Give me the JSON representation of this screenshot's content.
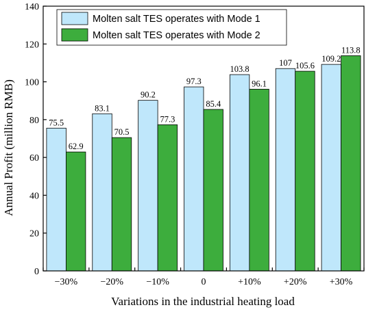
{
  "chart_data": {
    "type": "bar",
    "xlabel": "Variations in the industrial heating load",
    "ylabel": "Annual Profit (million RMB)",
    "categories": [
      "−30%",
      "−20%",
      "−10%",
      "0",
      "+10%",
      "+20%",
      "+30%"
    ],
    "ylim": [
      0,
      140
    ],
    "yticks": [
      0,
      20,
      40,
      60,
      80,
      100,
      120,
      140
    ],
    "grid": false,
    "legend_position": "top-left",
    "series": [
      {
        "name": "Molten salt TES operates with Mode 1",
        "color": "#bfe7fb",
        "values": [
          75.5,
          83.1,
          90.2,
          97.3,
          103.8,
          107,
          109.2
        ],
        "labels": [
          "75.5",
          "83.1",
          "90.2",
          "97.3",
          "103.8",
          "107",
          "109.2"
        ]
      },
      {
        "name": "Molten salt TES operates with Mode 2",
        "color": "#3dad3d",
        "values": [
          62.9,
          70.5,
          77.3,
          85.4,
          96.1,
          105.6,
          113.8
        ],
        "labels": [
          "62.9",
          "70.5",
          "77.3",
          "85.4",
          "96.1",
          "105.6",
          "113.8"
        ]
      }
    ]
  }
}
